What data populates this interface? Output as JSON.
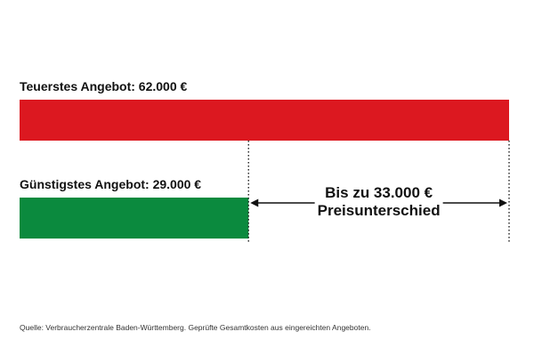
{
  "chart_data": {
    "type": "bar",
    "orientation": "horizontal",
    "unit": "€",
    "bars": [
      {
        "label": "Teuerstes Angebot: 62.000 €",
        "value": 62000,
        "color": "#dc1820"
      },
      {
        "label": "Günstigstes Angebot: 29.000 €",
        "value": 29000,
        "color": "#0b8a3e"
      }
    ],
    "xlim": [
      0,
      62000
    ],
    "grid": false,
    "difference": {
      "value": 33000,
      "line1": "Bis zu 33.000 €",
      "line2": "Preisunterschied"
    },
    "source": "Quelle: Verbraucherzentrale Baden-Württemberg. Geprüfte Gesamtkosten aus eingereichten Angeboten."
  }
}
